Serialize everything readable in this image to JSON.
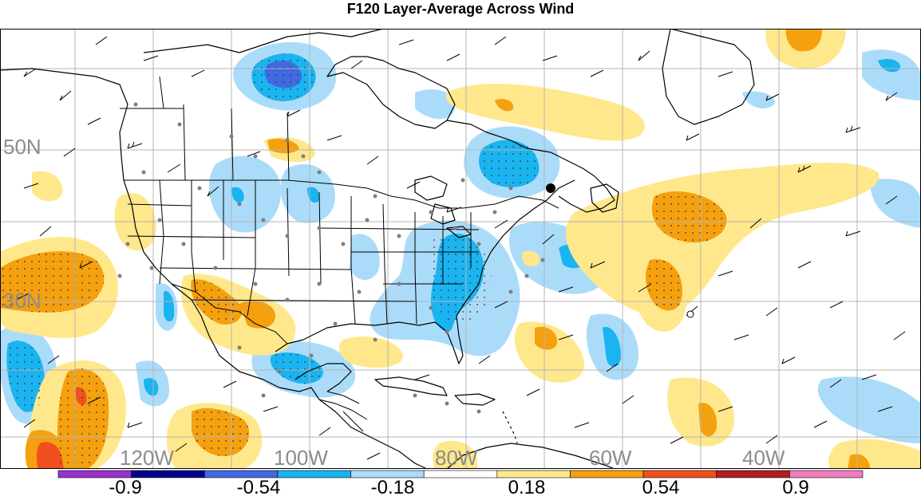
{
  "title": "F120 Layer-Average Across Wind",
  "map": {
    "lat_labels": [
      "50N",
      "30N"
    ],
    "lon_labels": [
      "120W",
      "100W",
      "80W",
      "60W",
      "40W"
    ],
    "colors": {
      "land_outline": "#000000",
      "grid": "#b4b4b4",
      "label_gray": "#8c8c8c",
      "station_dot": "#7f7f7f"
    }
  },
  "colorbar": {
    "tick_labels": [
      "-0.9",
      "-0.54",
      "-0.18",
      "0.18",
      "0.54",
      "0.9"
    ],
    "colors": [
      "#9932cc",
      "#00008b",
      "#4169e1",
      "#1ab4f0",
      "#aadcfa",
      "#ffffff",
      "#ffe88c",
      "#f5a00f",
      "#f0501e",
      "#b41e1e",
      "#f07dbe"
    ]
  }
}
